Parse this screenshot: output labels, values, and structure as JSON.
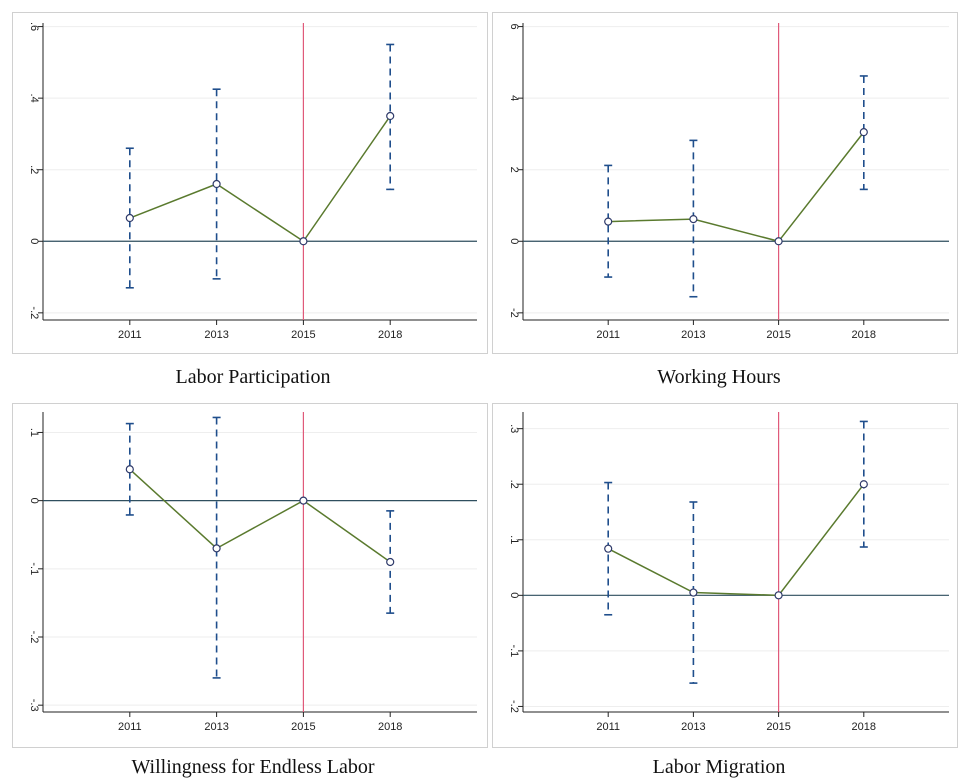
{
  "colors": {
    "line": "#5a7a2e",
    "ci": "#1f4e8c",
    "zero_line": "#2f4f5f",
    "event_line": "#e05a7a",
    "grid": "#eeeeee",
    "axis": "#222222",
    "marker_fill": "#ffffff",
    "marker_stroke": "#2f3a6a"
  },
  "chart_data": [
    {
      "type": "line",
      "title": "Labor Participation",
      "xlabel": "",
      "ylabel": "",
      "categories": [
        "2011",
        "2013",
        "2015",
        "2018"
      ],
      "values": [
        0.065,
        0.16,
        0.0,
        0.35
      ],
      "ci_lower": [
        -0.13,
        -0.105,
        0.0,
        0.145
      ],
      "ci_upper": [
        0.26,
        0.425,
        0.0,
        0.55
      ],
      "ylim": [
        -0.22,
        0.61
      ],
      "yticks": [
        -0.2,
        0,
        0.2,
        0.4,
        0.6
      ],
      "ytick_labels": [
        "-.2",
        "0",
        ".2",
        ".4",
        ".6"
      ],
      "reference_x": "2015",
      "reference_y": 0,
      "grid": true,
      "legend": "none"
    },
    {
      "type": "line",
      "title": "Working Hours",
      "xlabel": "",
      "ylabel": "",
      "categories": [
        "2011",
        "2013",
        "2015",
        "2018"
      ],
      "values": [
        0.55,
        0.62,
        0.0,
        3.05
      ],
      "ci_lower": [
        -1.0,
        -1.55,
        0.0,
        1.45
      ],
      "ci_upper": [
        2.12,
        2.82,
        0.0,
        4.62
      ],
      "ylim": [
        -2.2,
        6.1
      ],
      "yticks": [
        -2,
        0,
        2,
        4,
        6
      ],
      "ytick_labels": [
        "-2",
        "0",
        "2",
        "4",
        "6"
      ],
      "reference_x": "2015",
      "reference_y": 0,
      "grid": true,
      "legend": "none"
    },
    {
      "type": "line",
      "title": "Willingness for Endless Labor",
      "xlabel": "",
      "ylabel": "",
      "categories": [
        "2011",
        "2013",
        "2015",
        "2018"
      ],
      "values": [
        0.046,
        -0.07,
        0.0,
        -0.09
      ],
      "ci_lower": [
        -0.021,
        -0.26,
        0.0,
        -0.165
      ],
      "ci_upper": [
        0.113,
        0.122,
        0.0,
        -0.015
      ],
      "ylim": [
        -0.31,
        0.13
      ],
      "yticks": [
        -0.3,
        -0.2,
        -0.1,
        0,
        0.1
      ],
      "ytick_labels": [
        "-.3",
        "-.2",
        "-.1",
        "0",
        ".1"
      ],
      "reference_x": "2015",
      "reference_y": 0,
      "grid": true,
      "legend": "none"
    },
    {
      "type": "line",
      "title": "Labor Migration",
      "xlabel": "",
      "ylabel": "",
      "categories": [
        "2011",
        "2013",
        "2015",
        "2018"
      ],
      "values": [
        0.084,
        0.005,
        0.0,
        0.2
      ],
      "ci_lower": [
        -0.035,
        -0.158,
        0.0,
        0.087
      ],
      "ci_upper": [
        0.203,
        0.168,
        0.0,
        0.313
      ],
      "ylim": [
        -0.21,
        0.33
      ],
      "yticks": [
        -0.2,
        -0.1,
        0,
        0.1,
        0.2,
        0.3
      ],
      "ytick_labels": [
        "-.2",
        "-.1",
        "0",
        ".1",
        ".2",
        ".3"
      ],
      "reference_x": "2015",
      "reference_y": 0,
      "grid": true,
      "legend": "none"
    }
  ]
}
